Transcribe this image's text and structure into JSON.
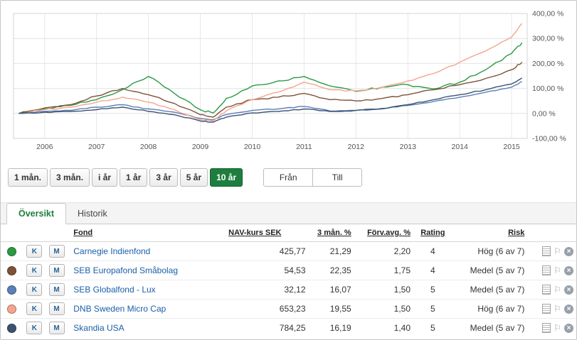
{
  "chart_data": {
    "type": "line",
    "title": "",
    "xlabel": "",
    "ylabel": "",
    "grid": true,
    "legend_position": "none",
    "ylim": [
      -100,
      400
    ],
    "xlim": [
      2005.4,
      2015.3
    ],
    "y_ticks": [
      {
        "v": 400,
        "label": "400,00 %"
      },
      {
        "v": 300,
        "label": "300,00 %"
      },
      {
        "v": 200,
        "label": "200,00 %"
      },
      {
        "v": 100,
        "label": "100,00 %"
      },
      {
        "v": 0,
        "label": "0,00 %"
      },
      {
        "v": -100,
        "label": "-100,00 %"
      }
    ],
    "x_ticks": [
      {
        "v": 2006,
        "label": "2006"
      },
      {
        "v": 2007,
        "label": "2007"
      },
      {
        "v": 2008,
        "label": "2008"
      },
      {
        "v": 2009,
        "label": "2009"
      },
      {
        "v": 2010,
        "label": "2010"
      },
      {
        "v": 2011,
        "label": "2011"
      },
      {
        "v": 2012,
        "label": "2012"
      },
      {
        "v": 2013,
        "label": "2013"
      },
      {
        "v": 2014,
        "label": "2014"
      },
      {
        "v": 2015,
        "label": "2015"
      }
    ],
    "x": [
      2005.5,
      2006,
      2006.5,
      2007,
      2007.5,
      2008,
      2008.5,
      2009,
      2009.25,
      2009.5,
      2010,
      2010.5,
      2011,
      2011.5,
      2012,
      2012.5,
      2013,
      2013.5,
      2014,
      2014.5,
      2015,
      2015.2
    ],
    "series": [
      {
        "name": "Carnegie Indienfond",
        "color": "#2a9a44",
        "values": [
          0,
          18,
          32,
          55,
          95,
          148,
          80,
          15,
          2,
          60,
          110,
          130,
          148,
          110,
          88,
          105,
          115,
          98,
          125,
          175,
          240,
          283
        ]
      },
      {
        "name": "SEB Europafond Småbolag",
        "color": "#7d5237",
        "values": [
          0,
          22,
          35,
          70,
          100,
          75,
          40,
          -5,
          -15,
          25,
          55,
          65,
          80,
          55,
          50,
          60,
          75,
          95,
          115,
          140,
          175,
          205
        ]
      },
      {
        "name": "SEB Globalfond - Lux",
        "color": "#5b7fb9",
        "values": [
          0,
          8,
          12,
          25,
          35,
          18,
          5,
          -20,
          -25,
          -5,
          12,
          18,
          28,
          10,
          12,
          18,
          32,
          48,
          65,
          85,
          105,
          128
        ]
      },
      {
        "name": "DNB Sweden Micro Cap",
        "color": "#f4a58f",
        "values": [
          0,
          15,
          25,
          45,
          65,
          45,
          15,
          -25,
          -30,
          10,
          55,
          85,
          125,
          95,
          90,
          105,
          130,
          160,
          205,
          250,
          305,
          360
        ]
      },
      {
        "name": "Skandia USA",
        "color": "#3d5270",
        "values": [
          0,
          5,
          8,
          15,
          25,
          8,
          -5,
          -30,
          -35,
          -15,
          2,
          8,
          18,
          8,
          12,
          20,
          35,
          55,
          75,
          95,
          118,
          142
        ]
      }
    ]
  },
  "periods": [
    {
      "label": "1 mån.",
      "active": false
    },
    {
      "label": "3 mån.",
      "active": false
    },
    {
      "label": "i år",
      "active": false
    },
    {
      "label": "1 år",
      "active": false
    },
    {
      "label": "3 år",
      "active": false
    },
    {
      "label": "5 år",
      "active": false
    },
    {
      "label": "10 år",
      "active": true
    }
  ],
  "range": {
    "from": "Från",
    "to": "Till"
  },
  "tabs": [
    {
      "label": "Översikt",
      "active": true
    },
    {
      "label": "Historik",
      "active": false
    }
  ],
  "table": {
    "headers": {
      "fund": "Fond",
      "nav": "NAV-kurs SEK",
      "m3": "3 mån. %",
      "fee": "Förv.avg. %",
      "rating": "Rating",
      "risk": "Risk"
    },
    "row_buttons": {
      "k": "K",
      "m": "M"
    },
    "rows": [
      {
        "color": "#2a9a44",
        "name": "Carnegie Indienfond",
        "nav": "425,77",
        "m3": "21,29",
        "fee": "2,20",
        "rating": "4",
        "risk": "Hög (6 av 7)"
      },
      {
        "color": "#7d5237",
        "name": "SEB Europafond Småbolag",
        "nav": "54,53",
        "m3": "22,35",
        "fee": "1,75",
        "rating": "4",
        "risk": "Medel (5 av 7)"
      },
      {
        "color": "#5b7fb9",
        "name": "SEB Globalfond - Lux",
        "nav": "32,12",
        "m3": "16,07",
        "fee": "1,50",
        "rating": "5",
        "risk": "Medel (5 av 7)"
      },
      {
        "color": "#f4a58f",
        "name": "DNB Sweden Micro Cap",
        "nav": "653,23",
        "m3": "19,55",
        "fee": "1,50",
        "rating": "5",
        "risk": "Hög (6 av 7)"
      },
      {
        "color": "#3d5270",
        "name": "Skandia USA",
        "nav": "784,25",
        "m3": "16,19",
        "fee": "1,40",
        "rating": "5",
        "risk": "Medel (5 av 7)"
      }
    ]
  },
  "colors": {
    "accent_green": "#1e7e3e",
    "link_blue": "#1a5fa8"
  }
}
